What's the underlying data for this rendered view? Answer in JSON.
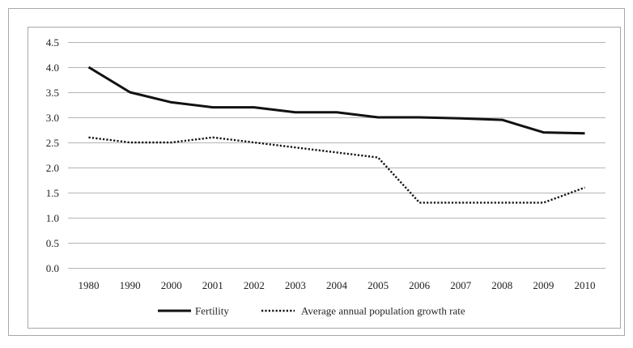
{
  "chart_data": {
    "type": "line",
    "title": "",
    "xlabel": "",
    "ylabel": "",
    "categories": [
      "1980",
      "1990",
      "2000",
      "2001",
      "2002",
      "2003",
      "2004",
      "2005",
      "2006",
      "2007",
      "2008",
      "2009",
      "2010"
    ],
    "ylim": [
      0,
      4.5
    ],
    "yticks": [
      "0.0",
      "0.5",
      "1.0",
      "1.5",
      "2.0",
      "2.5",
      "3.0",
      "3.5",
      "4.0",
      "4.5"
    ],
    "grid": true,
    "legend_position": "bottom",
    "series": [
      {
        "name": "Fertility",
        "style": "solid",
        "color": "#111111",
        "values": [
          4.0,
          3.5,
          3.3,
          3.2,
          3.2,
          3.1,
          3.1,
          3.0,
          3.0,
          2.98,
          2.95,
          2.7,
          2.68
        ]
      },
      {
        "name": "Average annual population growth rate",
        "style": "dotted",
        "color": "#111111",
        "values": [
          2.6,
          2.5,
          2.5,
          2.6,
          2.5,
          2.4,
          2.3,
          2.2,
          1.3,
          1.3,
          1.3,
          1.3,
          1.6
        ]
      }
    ]
  }
}
